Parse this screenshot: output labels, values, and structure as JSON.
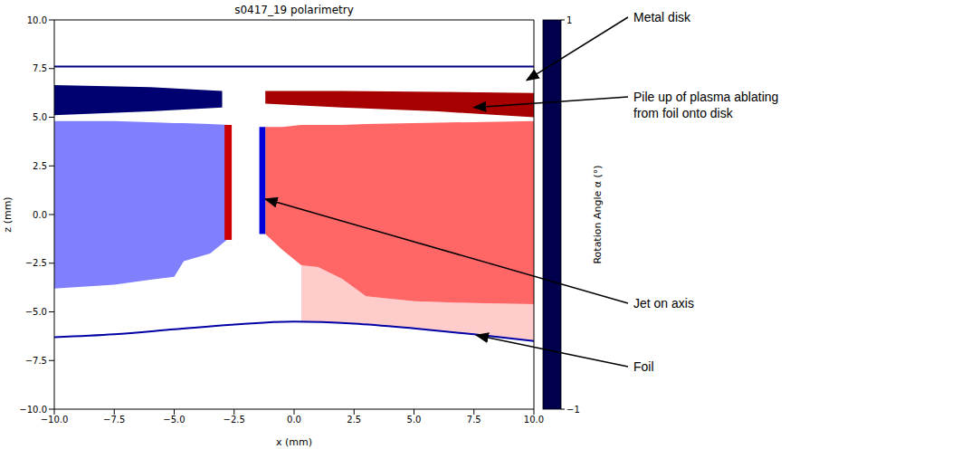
{
  "chart_data": {
    "type": "heatmap",
    "title": "s0417_19 polarimetry",
    "x_label": "x (mm)",
    "y_label": "z (mm)",
    "xlim": [
      -10,
      10
    ],
    "ylim": [
      -10,
      10
    ],
    "xticks": [
      {
        "value": -10,
        "label": "−10.0"
      },
      {
        "value": -7.5,
        "label": "−7.5"
      },
      {
        "value": -5,
        "label": "−5.0"
      },
      {
        "value": -2.5,
        "label": "−2.5"
      },
      {
        "value": 0,
        "label": "0.0"
      },
      {
        "value": 2.5,
        "label": "2.5"
      },
      {
        "value": 5,
        "label": "5.0"
      },
      {
        "value": 7.5,
        "label": "7.5"
      },
      {
        "value": 10,
        "label": "10.0"
      }
    ],
    "yticks": [
      {
        "value": -10,
        "label": "−10.0"
      },
      {
        "value": -7.5,
        "label": "−7.5"
      },
      {
        "value": -5,
        "label": "−5.0"
      },
      {
        "value": -2.5,
        "label": "−2.5"
      },
      {
        "value": 0,
        "label": "0.0"
      },
      {
        "value": 2.5,
        "label": "2.5"
      },
      {
        "value": 5,
        "label": "5.0"
      },
      {
        "value": 7.5,
        "label": "7.5"
      },
      {
        "value": 10,
        "label": "10.0"
      }
    ],
    "colorbar": {
      "label": "Rotation Angle α (°)",
      "range": [
        -1,
        1
      ],
      "ticks": [
        {
          "value": -1,
          "label": "−1"
        },
        1
      ]
    },
    "regions": [
      {
        "x": [
          0.3,
          1,
          2,
          3,
          5,
          7.5,
          10
        ],
        "low": [
          -5.5,
          -5.52,
          -5.56,
          -5.62,
          -5.85,
          -6.15,
          -6.5
        ],
        "high": [
          -2.6,
          -2.7,
          -3.3,
          -4.2,
          -4.45,
          -4.55,
          -4.6
        ],
        "value": 0.1
      },
      {
        "x": [
          -10,
          -7.5,
          -6,
          -5,
          -4.6,
          -3.5,
          -2.7
        ],
        "low": [
          -3.8,
          -3.6,
          -3.35,
          -3.2,
          -2.4,
          -2.0,
          -1.2
        ],
        "high": [
          4.8,
          4.8,
          4.75,
          4.7,
          4.7,
          4.65,
          4.6
        ],
        "value": -0.25
      },
      {
        "x": [
          -1.2,
          -0.5,
          0.3,
          1,
          2,
          3,
          5,
          7.5,
          10
        ],
        "low": [
          -1.0,
          -1.8,
          -2.6,
          -2.7,
          -3.3,
          -4.2,
          -4.45,
          -4.55,
          -4.6
        ],
        "high": [
          4.5,
          4.5,
          4.6,
          4.6,
          4.6,
          4.65,
          4.7,
          4.75,
          4.8
        ],
        "value": 0.3
      },
      {
        "x": [
          -2.9,
          -2.6
        ],
        "low": [
          -1.3,
          -1.3
        ],
        "high": [
          4.6,
          4.6
        ],
        "value": 0.7
      },
      {
        "x": [
          -1.45,
          -1.2
        ],
        "low": [
          -1.0,
          -1.0
        ],
        "high": [
          4.5,
          4.5
        ],
        "value": -0.6
      },
      {
        "x": [
          -10,
          -6,
          -3
        ],
        "low": [
          5.1,
          5.3,
          5.5
        ],
        "high": [
          6.65,
          6.55,
          6.35
        ],
        "value": -0.9
      },
      {
        "x": [
          -1.2,
          2,
          6,
          10
        ],
        "low": [
          5.7,
          5.5,
          5.3,
          5.0
        ],
        "high": [
          6.35,
          6.35,
          6.3,
          6.25
        ],
        "value": 0.85
      }
    ],
    "lines": [
      {
        "x": [
          -10,
          10
        ],
        "z": [
          7.6,
          7.6
        ],
        "value": -0.85
      },
      {
        "x": [
          -10,
          -7.5,
          -5,
          -2.5,
          0,
          2.5,
          5,
          7.5,
          10
        ],
        "z": [
          -6.3,
          -6.15,
          -5.9,
          -5.65,
          -5.5,
          -5.6,
          -5.85,
          -6.15,
          -6.5
        ],
        "value": -0.75
      }
    ],
    "annotations": [
      {
        "text": "Metal disk",
        "x": 9.7,
        "z": 6.9
      },
      {
        "text": "Pile up of plasma ablating from foil onto disk",
        "x": 7.5,
        "z": 5.5
      },
      {
        "text": "Jet on axis",
        "x": -1.2,
        "z": 0.8
      },
      {
        "text": "Foil",
        "x": 7.6,
        "z": -6.2
      }
    ]
  }
}
